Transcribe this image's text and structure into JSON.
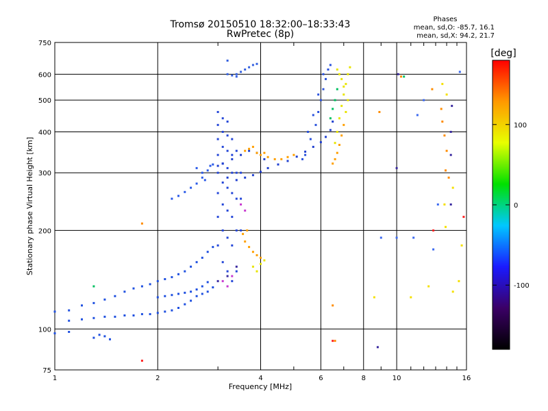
{
  "chart_data": {
    "type": "scatter",
    "title": "Tromsø 20150510 18:32:00–18:33:43",
    "subtitle": "RwPretec (8p)",
    "xlabel": "Frequency [MHz]",
    "ylabel": "Stationary phase Virtual Height [km]",
    "x_scale": "log",
    "y_scale": "log",
    "xlim": [
      1,
      16
    ],
    "ylim": [
      75,
      750
    ],
    "x_ticks": [
      1,
      2,
      4,
      6,
      8,
      10,
      16
    ],
    "y_ticks": [
      75,
      100,
      200,
      300,
      400,
      500,
      600,
      750
    ],
    "grid": true,
    "stats": {
      "heading": "Phases",
      "line_o": "mean, sd,O: -85.7, 16.1",
      "line_x": "mean, sd,X:  94.2, 21.7"
    },
    "colorbar": {
      "label": "[deg]",
      "ticks": [
        100,
        0,
        -100
      ],
      "range": [
        -180,
        180
      ],
      "colors": [
        "#000000",
        "#3b0066",
        "#1a1aff",
        "#00c8ff",
        "#00e000",
        "#e8ff00",
        "#ff9900",
        "#ff0000"
      ]
    },
    "series": [
      {
        "color": "#1f50e0",
        "points": [
          [
            1.0,
            113
          ],
          [
            1.1,
            114
          ],
          [
            1.2,
            118
          ],
          [
            1.3,
            120
          ],
          [
            1.4,
            123
          ],
          [
            1.5,
            126
          ],
          [
            1.6,
            130
          ],
          [
            1.7,
            133
          ],
          [
            1.8,
            135
          ],
          [
            1.9,
            137
          ],
          [
            2.0,
            140
          ],
          [
            2.1,
            142
          ],
          [
            2.2,
            144
          ],
          [
            2.3,
            147
          ],
          [
            2.4,
            150
          ],
          [
            2.5,
            155
          ],
          [
            2.6,
            160
          ],
          [
            2.7,
            165
          ],
          [
            2.8,
            172
          ],
          [
            2.9,
            178
          ],
          [
            1.1,
            106
          ],
          [
            1.2,
            107
          ],
          [
            1.3,
            108
          ],
          [
            1.4,
            109
          ],
          [
            1.5,
            109
          ],
          [
            1.6,
            110
          ],
          [
            1.7,
            110
          ],
          [
            1.8,
            111
          ],
          [
            1.9,
            111
          ],
          [
            2.0,
            112
          ],
          [
            2.1,
            113
          ],
          [
            2.2,
            114
          ],
          [
            2.3,
            116
          ],
          [
            2.4,
            119
          ],
          [
            2.5,
            122
          ],
          [
            2.6,
            126
          ],
          [
            2.7,
            128
          ],
          [
            2.8,
            130
          ],
          [
            2.9,
            134
          ],
          [
            2.0,
            125
          ],
          [
            2.1,
            126
          ],
          [
            2.2,
            127
          ],
          [
            2.3,
            128
          ],
          [
            2.4,
            129
          ],
          [
            2.5,
            130
          ],
          [
            2.6,
            132
          ],
          [
            2.7,
            135
          ],
          [
            2.8,
            139
          ],
          [
            1.0,
            97
          ],
          [
            1.1,
            98
          ],
          [
            1.3,
            94
          ],
          [
            1.35,
            96
          ],
          [
            1.4,
            95
          ],
          [
            1.45,
            93
          ]
        ]
      },
      {
        "color": "#2648d8",
        "points": [
          [
            3.0,
            180
          ],
          [
            3.0,
            220
          ],
          [
            3.0,
            260
          ],
          [
            3.0,
            300
          ],
          [
            3.0,
            340
          ],
          [
            3.0,
            380
          ],
          [
            3.0,
            420
          ],
          [
            3.0,
            460
          ],
          [
            3.1,
            160
          ],
          [
            3.1,
            200
          ],
          [
            3.1,
            240
          ],
          [
            3.1,
            280
          ],
          [
            3.1,
            320
          ],
          [
            3.1,
            360
          ],
          [
            3.1,
            400
          ],
          [
            3.1,
            440
          ],
          [
            3.2,
            150
          ],
          [
            3.2,
            190
          ],
          [
            3.2,
            230
          ],
          [
            3.2,
            270
          ],
          [
            3.2,
            310
          ],
          [
            3.2,
            350
          ],
          [
            3.2,
            390
          ],
          [
            3.2,
            430
          ],
          [
            3.3,
            140
          ],
          [
            3.3,
            180
          ],
          [
            3.3,
            220
          ],
          [
            3.3,
            260
          ],
          [
            3.3,
            300
          ],
          [
            3.3,
            340
          ],
          [
            3.3,
            380
          ],
          [
            3.4,
            150
          ],
          [
            3.4,
            200
          ],
          [
            3.4,
            250
          ],
          [
            3.4,
            300
          ],
          [
            3.4,
            350
          ],
          [
            3.5,
            200
          ],
          [
            3.5,
            250
          ],
          [
            3.5,
            300
          ]
        ]
      },
      {
        "color": "#2040d0",
        "points": [
          [
            3.2,
            290
          ],
          [
            3.4,
            285
          ],
          [
            3.6,
            290
          ],
          [
            3.8,
            295
          ],
          [
            4.0,
            302
          ],
          [
            4.2,
            310
          ],
          [
            4.5,
            318
          ],
          [
            4.8,
            326
          ],
          [
            5.1,
            336
          ],
          [
            5.4,
            348
          ],
          [
            5.7,
            360
          ],
          [
            6.0,
            372
          ],
          [
            6.2,
            386
          ],
          [
            6.4,
            405
          ],
          [
            6.5,
            430
          ],
          [
            3.0,
            315
          ],
          [
            3.1,
            320
          ],
          [
            3.3,
            330
          ],
          [
            3.5,
            340
          ],
          [
            3.7,
            350
          ],
          [
            3.9,
            345
          ],
          [
            4.1,
            330
          ]
        ]
      },
      {
        "color": "#2a52dc",
        "points": [
          [
            5.4,
            340
          ],
          [
            5.6,
            380
          ],
          [
            5.8,
            420
          ],
          [
            5.9,
            460
          ],
          [
            6.0,
            500
          ],
          [
            6.1,
            540
          ],
          [
            6.2,
            580
          ],
          [
            6.3,
            620
          ],
          [
            6.4,
            640
          ],
          [
            5.5,
            400
          ],
          [
            5.7,
            450
          ],
          [
            5.9,
            520
          ],
          [
            6.1,
            600
          ],
          [
            5.3,
            330
          ]
        ]
      },
      {
        "color": "#2a5ae8",
        "points": [
          [
            2.2,
            250
          ],
          [
            2.3,
            255
          ],
          [
            2.4,
            262
          ],
          [
            2.5,
            270
          ],
          [
            2.6,
            278
          ],
          [
            2.7,
            290
          ],
          [
            2.8,
            305
          ],
          [
            2.9,
            318
          ],
          [
            2.6,
            310
          ],
          [
            2.7,
            300
          ],
          [
            2.75,
            285
          ],
          [
            2.85,
            315
          ]
        ]
      },
      {
        "color": "#3460e0",
        "points": [
          [
            3.2,
            600
          ],
          [
            3.3,
            595
          ],
          [
            3.4,
            600
          ],
          [
            3.5,
            610
          ],
          [
            3.6,
            620
          ],
          [
            3.7,
            630
          ],
          [
            3.8,
            640
          ],
          [
            3.9,
            645
          ],
          [
            3.2,
            660
          ],
          [
            3.4,
            590
          ]
        ]
      },
      {
        "color": "#ff9f00",
        "points": [
          [
            3.6,
            350
          ],
          [
            3.7,
            355
          ],
          [
            3.8,
            360
          ],
          [
            3.9,
            345
          ],
          [
            4.0,
            340
          ],
          [
            4.1,
            345
          ],
          [
            4.2,
            335
          ],
          [
            4.4,
            330
          ],
          [
            4.6,
            330
          ],
          [
            4.8,
            335
          ],
          [
            5.0,
            340
          ],
          [
            3.6,
            185
          ],
          [
            3.7,
            178
          ],
          [
            3.8,
            172
          ],
          [
            3.9,
            168
          ],
          [
            4.0,
            165
          ],
          [
            3.55,
            195
          ],
          [
            3.65,
            200
          ],
          [
            6.5,
            320
          ],
          [
            6.6,
            330
          ],
          [
            6.7,
            345
          ],
          [
            6.8,
            365
          ],
          [
            6.9,
            390
          ],
          [
            7.0,
            420
          ]
        ]
      },
      {
        "color": "#e8e400",
        "points": [
          [
            6.6,
            370
          ],
          [
            6.7,
            400
          ],
          [
            6.8,
            440
          ],
          [
            6.9,
            480
          ],
          [
            7.0,
            520
          ],
          [
            7.1,
            560
          ],
          [
            7.2,
            600
          ],
          [
            7.3,
            630
          ],
          [
            6.7,
            620
          ],
          [
            6.8,
            600
          ],
          [
            6.9,
            580
          ],
          [
            7.0,
            550
          ],
          [
            7.2,
            500
          ],
          [
            7.1,
            460
          ],
          [
            3.8,
            155
          ],
          [
            3.9,
            150
          ],
          [
            4.0,
            158
          ],
          [
            4.1,
            162
          ]
        ]
      },
      {
        "color": "#00c060",
        "points": [
          [
            6.4,
            440
          ],
          [
            6.5,
            470
          ],
          [
            6.6,
            500
          ],
          [
            6.7,
            540
          ],
          [
            1.3,
            135
          ],
          [
            10.5,
            590
          ]
        ]
      },
      {
        "color": "#c83ad0",
        "points": [
          [
            3.1,
            140
          ],
          [
            3.2,
            135
          ],
          [
            3.3,
            145
          ],
          [
            3.5,
            240
          ],
          [
            3.6,
            230
          ]
        ]
      },
      {
        "color": "#3a2aa0",
        "points": [
          [
            3.0,
            140
          ],
          [
            3.2,
            145
          ],
          [
            3.4,
            155
          ],
          [
            8.8,
            88
          ],
          [
            14.4,
            240
          ],
          [
            14.4,
            340
          ],
          [
            14.4,
            400
          ],
          [
            14.5,
            480
          ],
          [
            10.1,
            600
          ],
          [
            10.0,
            310
          ]
        ]
      },
      {
        "color": "#ff8c00",
        "points": [
          [
            8.9,
            460
          ],
          [
            13.5,
            470
          ],
          [
            13.6,
            430
          ],
          [
            13.8,
            390
          ],
          [
            14.0,
            350
          ],
          [
            13.9,
            305
          ],
          [
            14.2,
            290
          ],
          [
            12.7,
            540
          ],
          [
            10.3,
            590
          ],
          [
            1.8,
            210
          ],
          [
            6.6,
            92
          ],
          [
            6.5,
            118
          ]
        ]
      },
      {
        "color": "#f5e000",
        "points": [
          [
            13.6,
            560
          ],
          [
            14.0,
            520
          ],
          [
            13.8,
            240
          ],
          [
            13.9,
            205
          ],
          [
            14.6,
            130
          ],
          [
            15.2,
            140
          ],
          [
            15.5,
            180
          ],
          [
            8.6,
            125
          ],
          [
            11.0,
            125
          ],
          [
            12.4,
            135
          ],
          [
            14.6,
            270
          ]
        ]
      },
      {
        "color": "#3c6af0",
        "points": [
          [
            9.0,
            190
          ],
          [
            10.0,
            190
          ],
          [
            11.2,
            190
          ],
          [
            12.8,
            175
          ],
          [
            13.2,
            240
          ],
          [
            15.3,
            610
          ],
          [
            12.0,
            500
          ],
          [
            11.5,
            450
          ]
        ]
      },
      {
        "color": "#ff2020",
        "points": [
          [
            1.8,
            80
          ],
          [
            6.5,
            92
          ],
          [
            15.7,
            220
          ],
          [
            12.8,
            200
          ]
        ]
      }
    ]
  }
}
